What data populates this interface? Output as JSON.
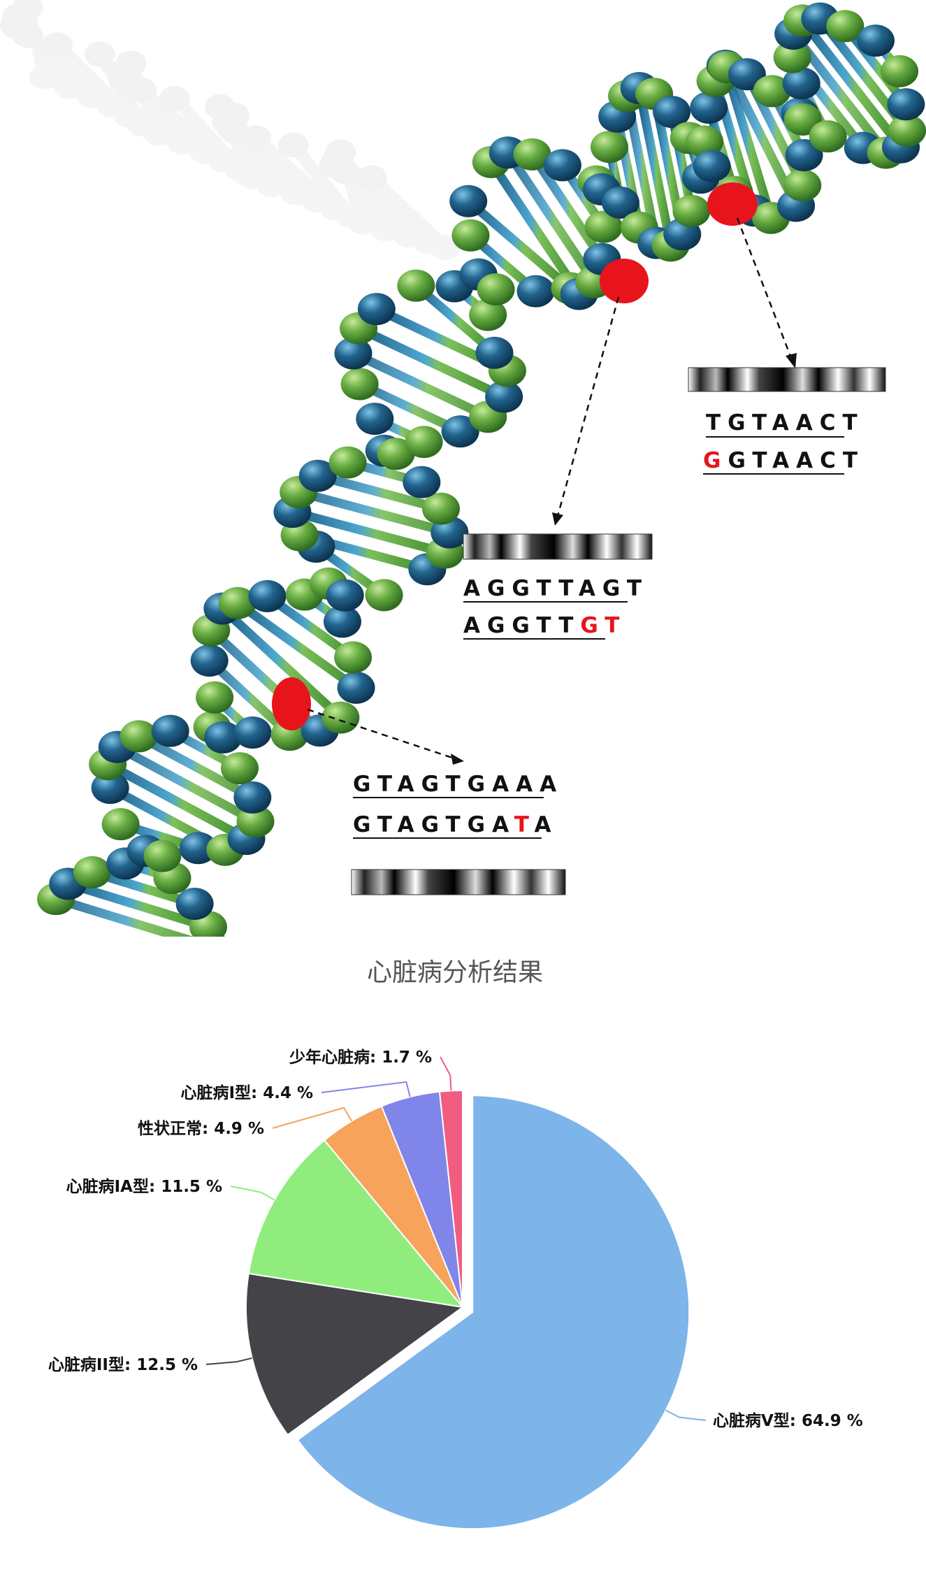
{
  "mutations": [
    {
      "reference": {
        "before": "TGTAACT",
        "mutated": "",
        "after": ""
      },
      "variant": {
        "before": "",
        "mutated": "G",
        "after": "GTAACT"
      }
    },
    {
      "reference": {
        "before": "AGGTTAGT",
        "mutated": "",
        "after": ""
      },
      "variant": {
        "before": "AGGTT",
        "mutated": "GT",
        "after": ""
      }
    },
    {
      "reference": {
        "before": "GTAGTGAAA",
        "mutated": "",
        "after": ""
      },
      "variant": {
        "before": "GTAGTGA",
        "mutated": "T",
        "after": "A"
      }
    }
  ],
  "colors": {
    "strand_green": "#5a9e3a",
    "strand_blue": "#1f5f85",
    "mutation_marker": "#e8141c"
  },
  "chart_data": {
    "type": "pie",
    "title": "心脏病分析结果",
    "unit": "%",
    "slices": [
      {
        "name": "心脏病V型",
        "value": 64.9,
        "label": "心脏病V型: 64.9 %",
        "color": "#7db4ea",
        "exploded": true
      },
      {
        "name": "心脏病II型",
        "value": 12.5,
        "label": "心脏病II型: 12.5 %",
        "color": "#434348",
        "exploded": false
      },
      {
        "name": "心脏病IA型",
        "value": 11.5,
        "label": "心脏病IA型: 11.5 %",
        "color": "#90ed7d",
        "exploded": false
      },
      {
        "name": "性状正常",
        "value": 4.9,
        "label": "性状正常: 4.9 %",
        "color": "#f7a35c",
        "exploded": false
      },
      {
        "name": "心脏病I型",
        "value": 4.4,
        "label": "心脏病I型: 4.4 %",
        "color": "#8085e9",
        "exploded": false
      },
      {
        "name": "少年心脏病",
        "value": 1.7,
        "label": "少年心脏病: 1.7 %",
        "color": "#f15c80",
        "exploded": false
      }
    ]
  }
}
